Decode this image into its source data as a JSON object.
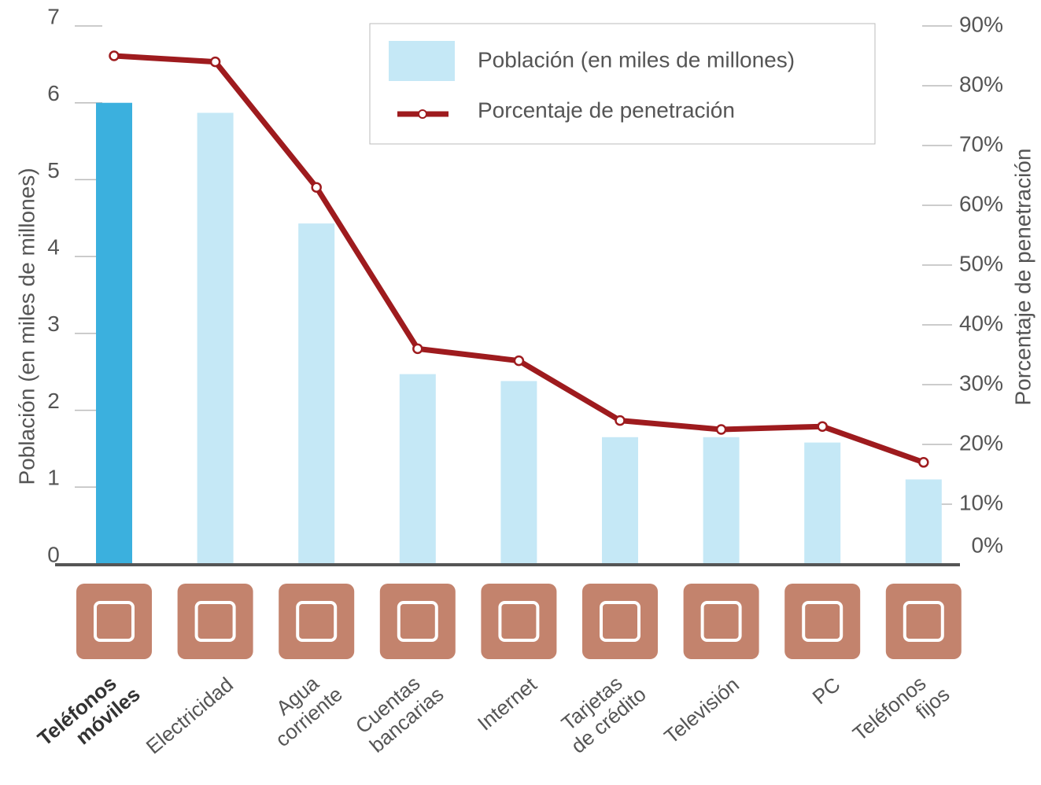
{
  "chart_data": {
    "type": "bar-line",
    "categories": [
      [
        "Teléfonos",
        "móviles"
      ],
      [
        "Electricidad"
      ],
      [
        "Agua",
        "corriente"
      ],
      [
        "Cuentas",
        "bancarias"
      ],
      [
        "Internet"
      ],
      [
        "Tarjetas",
        "de crédito"
      ],
      [
        "Televisión"
      ],
      [
        "PC"
      ],
      [
        "Teléfonos",
        "fijos"
      ]
    ],
    "ylabel": "Población (en miles de millones)",
    "y2label": "Porcentaje de penetración",
    "ylim": [
      0,
      7
    ],
    "yticks": [
      0,
      1,
      2,
      3,
      4,
      5,
      6,
      7
    ],
    "y2lim": [
      0,
      90
    ],
    "y2ticks": [
      {
        "value": 0,
        "label": "0%"
      },
      {
        "value": 10,
        "label": "10%"
      },
      {
        "value": 20,
        "label": "20%"
      },
      {
        "value": 30,
        "label": "30%"
      },
      {
        "value": 40,
        "label": "40%"
      },
      {
        "value": 50,
        "label": "50%"
      },
      {
        "value": 60,
        "label": "60%"
      },
      {
        "value": 70,
        "label": "70%"
      },
      {
        "value": 80,
        "label": "80%"
      },
      {
        "value": 90,
        "label": "90%"
      }
    ],
    "series": [
      {
        "name": "Población (en miles de millones)",
        "type": "bar",
        "color": "#c5e8f6",
        "highlight_color": "#3bb0de",
        "values": [
          6.0,
          5.87,
          4.43,
          2.47,
          2.38,
          1.65,
          1.65,
          1.58,
          1.1
        ]
      },
      {
        "name": "Porcentaje de penetración",
        "type": "line",
        "axis": "y2",
        "color": "#9e1b1e",
        "values": [
          85,
          84,
          63,
          36,
          34,
          24,
          22.5,
          23,
          17
        ]
      }
    ]
  }
}
